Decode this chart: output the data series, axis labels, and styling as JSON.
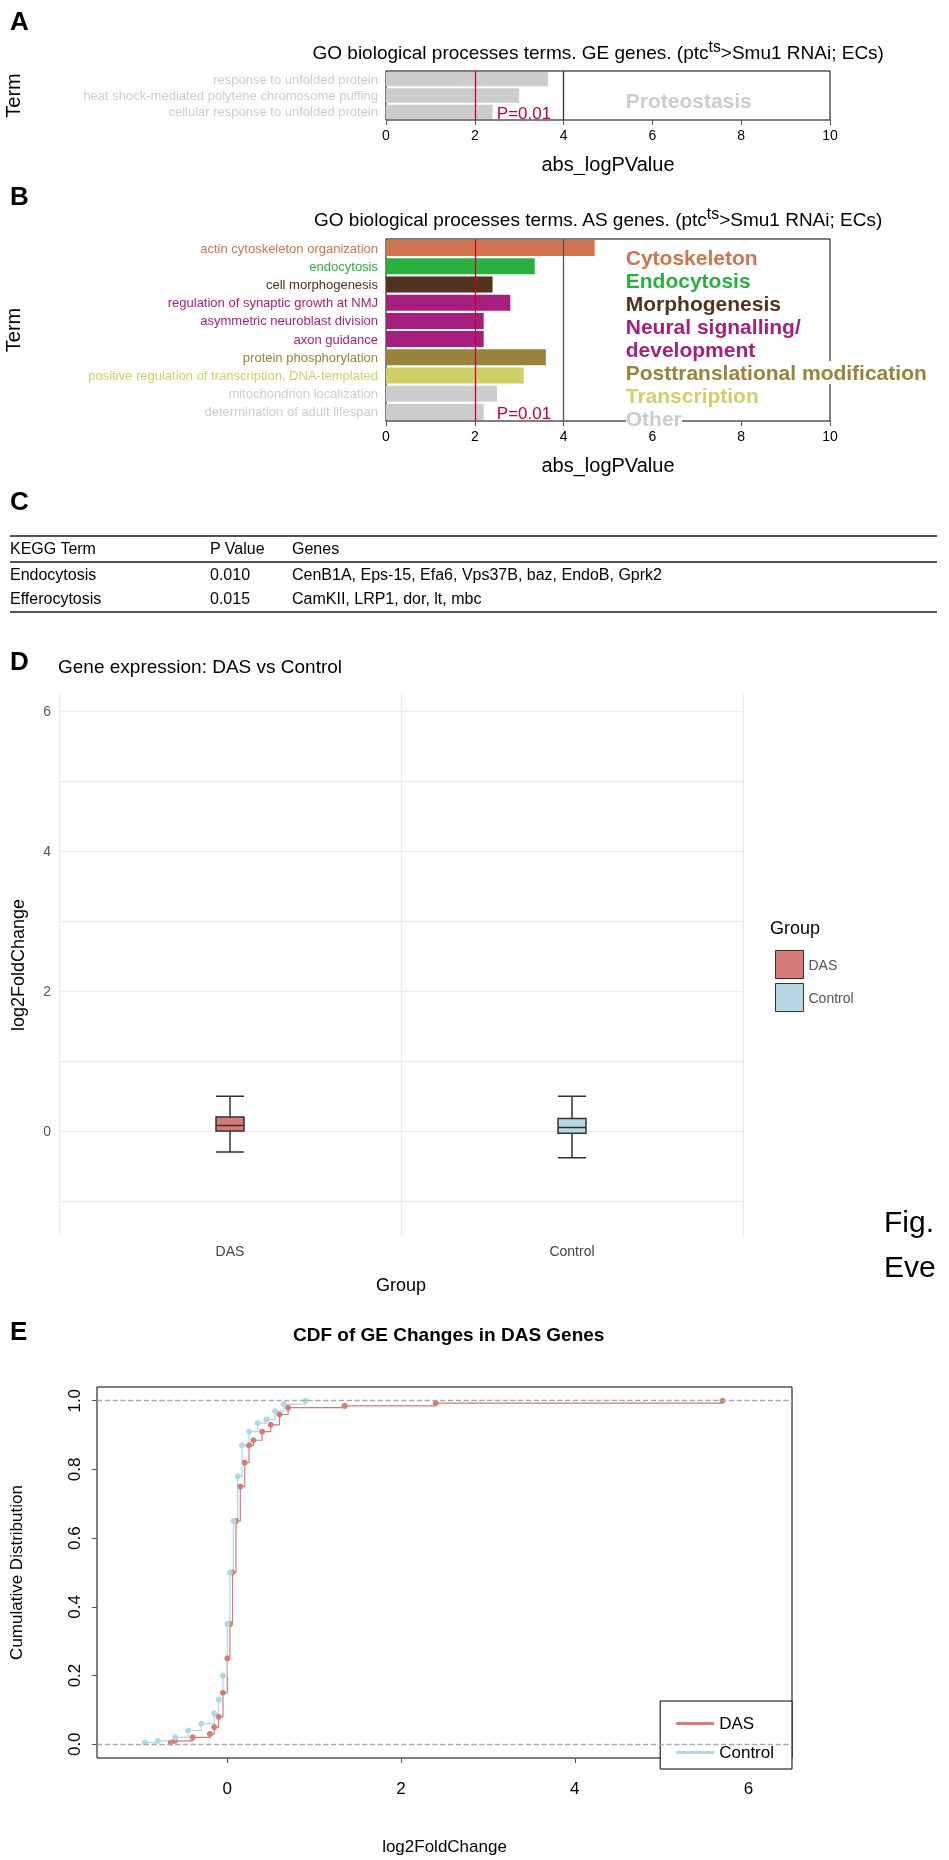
{
  "chart_data": [
    {
      "type": "bar",
      "orientation": "horizontal",
      "title": "GO biological processes terms. GE genes. (ptc$^{ts}$>Smu1 RNAi; ECs)",
      "xlabel": "abs_logPValue",
      "ylabel": "Term",
      "categories": [
        "response to unfolded protein",
        "heat shock-mediated polytene chromosome puffing",
        "cellular response to unfolded protein"
      ],
      "values": [
        3.65,
        3.0,
        2.4
      ],
      "colors": [
        "#cccccc",
        "#cccccc",
        "#cccccc"
      ],
      "xlim": [
        0,
        10
      ],
      "xticks": [
        0,
        2,
        4,
        6,
        8,
        10
      ],
      "grid": false,
      "ref_lines": [
        {
          "axis": "x",
          "value": 2,
          "label": null,
          "color": "#cc0033"
        },
        {
          "axis": "x",
          "value": 4,
          "label": null,
          "color": "#333333"
        }
      ],
      "annotations": [
        "A",
        "Proteostasis",
        {
          "text": "P=0.01",
          "x": 2,
          "y": "cellular response to unfolded protein"
        }
      ]
    },
    {
      "type": "bar",
      "orientation": "horizontal",
      "title": "GO biological processes terms. AS genes. (ptc$^{ts}$>Smu1 RNAi; ECs)",
      "xlabel": "abs_logPValue",
      "ylabel": "Term",
      "categories": [
        "actin cytoskeleton organization",
        "endocytosis",
        "cell morphogenesis",
        "regulation of synaptic growth at NMJ",
        "asymmetric neuroblast division",
        "axon guidance",
        "protein phosphorylation",
        "positive regulation of transcription, DNA-templated",
        "mitochondrion localization",
        "determination of adult lifespan"
      ],
      "values": [
        4.7,
        3.35,
        2.4,
        2.8,
        2.2,
        2.2,
        3.6,
        3.1,
        2.5,
        2.2
      ],
      "colors": [
        "#d0744f",
        "#2ab03e",
        "#533121",
        "#a61f7e",
        "#a61f7e",
        "#a61f7e",
        "#9a823a",
        "#cfcf67",
        "#cccccc",
        "#cccccc"
      ],
      "xlim": [
        0,
        10
      ],
      "xticks": [
        0,
        2,
        4,
        6,
        8,
        10
      ],
      "grid": false,
      "ref_lines": [
        {
          "axis": "x",
          "value": 2,
          "label": null,
          "color": "#cc0033"
        },
        {
          "axis": "x",
          "value": 4,
          "label": null,
          "color": "#555555"
        }
      ],
      "annotations": [
        "B",
        "Cytoskeleton",
        "Endocytosis",
        "Morphogenesis",
        "Neural signalling/\ndevelopment",
        "Posttranslational modification",
        "Transcription",
        "Other",
        {
          "text": "P=0.01",
          "x": 2,
          "y": "determination of adult lifespan"
        }
      ]
    },
    {
      "type": "other",
      "annotations": [
        "C",
        "KEGG Term",
        "P Value",
        "Genes",
        "Endocytosis",
        "0.010",
        "CenB1A, Eps-15, Efa6, Vps37B, baz, EndoB, Gprk2",
        "Efferocytosis",
        "0.015",
        "CamKII, LRP1, dor, lt, mbc"
      ]
    },
    {
      "type": "box",
      "title": "Gene expression: DAS vs Control",
      "xlabel": "Group",
      "ylabel": "log2FoldChange",
      "legend_title": "Group",
      "legend": "right",
      "grid": true,
      "categories": [
        "DAS",
        "Control"
      ],
      "ylim": [
        -1.5,
        6.25
      ],
      "yticks": [
        {
          "value": -1,
          "label": null
        },
        0,
        {
          "value": 1,
          "label": null
        },
        2,
        {
          "value": 3,
          "label": null
        },
        4,
        {
          "value": 5,
          "label": null
        },
        6
      ],
      "series": [
        {
          "name": "DAS",
          "color": "#d77b77",
          "boxes": [
            {
              "low": -0.3,
              "q1": 0.0,
              "median": 0.08,
              "q3": 0.2,
              "high": 0.5
            },
            null
          ]
        },
        {
          "name": "Control",
          "color": "#b7d7e5",
          "boxes": [
            null,
            {
              "low": -0.38,
              "q1": -0.03,
              "median": 0.05,
              "q3": 0.18,
              "high": 0.5
            }
          ]
        }
      ],
      "annotations": [
        "D",
        "Fig.",
        "Eve"
      ]
    },
    {
      "type": "step",
      "title": "CDF of GE Changes in DAS Genes",
      "xlabel": "log2FoldChange",
      "ylabel": "Cumulative Distribution",
      "legend": "bottom right",
      "grid": false,
      "marker": "circle",
      "xlim": [
        -1.5,
        6.5
      ],
      "xticks": [
        0,
        2,
        4,
        6
      ],
      "ylim": [
        -0.04,
        1.04
      ],
      "yticks": [
        {
          "value": 0,
          "label": "0.0"
        },
        0.2,
        0.4,
        0.6,
        0.8,
        {
          "value": 1,
          "label": "1.0"
        }
      ],
      "ref_lines": [
        {
          "axis": "y",
          "value": 0,
          "label": null,
          "color": "#aaaaaa",
          "line_style": "dashed"
        },
        {
          "axis": "y",
          "value": 1,
          "label": null,
          "color": "#aaaaaa",
          "line_style": "dashed"
        }
      ],
      "series": [
        {
          "name": "DAS",
          "color": "#d77b77",
          "x": [
            -0.65,
            -0.6,
            -0.4,
            -0.2,
            -0.15,
            -0.1,
            -0.05,
            0,
            0.03,
            0.06,
            0.1,
            0.15,
            0.2,
            0.25,
            0.3,
            0.4,
            0.5,
            0.6,
            0.7,
            1.35,
            2.4,
            5.7
          ],
          "values": [
            0.005,
            0.01,
            0.02,
            0.03,
            0.05,
            0.08,
            0.15,
            0.25,
            0.35,
            0.5,
            0.65,
            0.75,
            0.82,
            0.87,
            0.885,
            0.91,
            0.93,
            0.96,
            0.98,
            0.985,
            0.993,
            1.0
          ]
        },
        {
          "name": "Control",
          "color": "#add8e6",
          "x": [
            -0.95,
            -0.8,
            -0.6,
            -0.45,
            -0.3,
            -0.15,
            -0.1,
            -0.05,
            0,
            0.03,
            0.07,
            0.12,
            0.17,
            0.25,
            0.35,
            0.45,
            0.55,
            0.65,
            0.9
          ],
          "values": [
            0.005,
            0.01,
            0.02,
            0.04,
            0.06,
            0.09,
            0.13,
            0.2,
            0.35,
            0.5,
            0.65,
            0.78,
            0.87,
            0.91,
            0.935,
            0.945,
            0.97,
            0.99,
            1.0
          ]
        }
      ],
      "annotations": [
        "E"
      ]
    }
  ]
}
